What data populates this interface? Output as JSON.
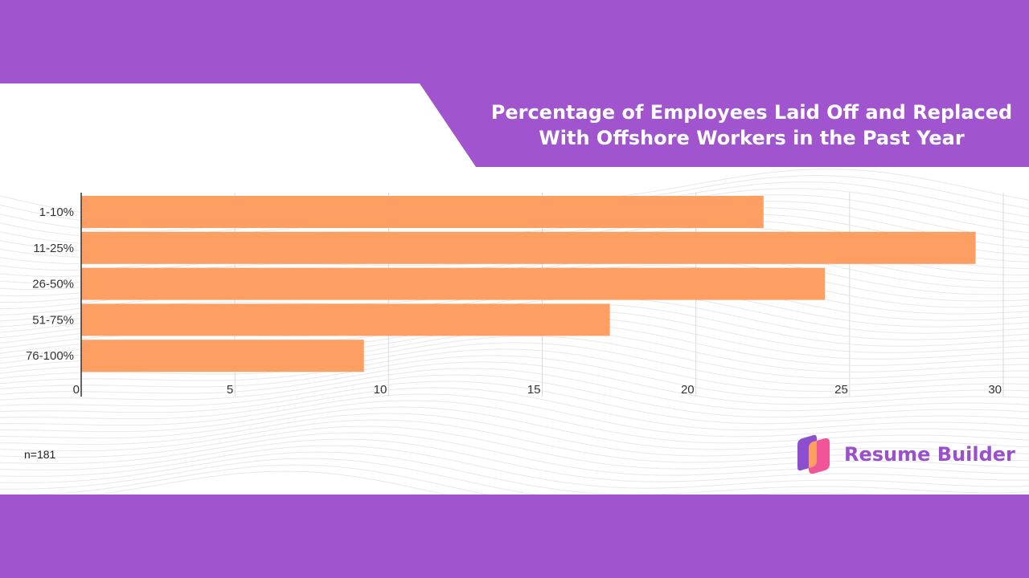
{
  "title_lines": [
    "Percentage of Employees Laid Off and Replaced",
    "With Offshore Workers in the Past Year"
  ],
  "note": "n=181",
  "brand": {
    "name": "Resume Builder",
    "logo_icon": "resume-builder-logo-icon"
  },
  "colors": {
    "frame": "#a055cf",
    "bar": "#fd9f62",
    "brand_text": "#9a50cc",
    "logo_purple": "#8d4fd0",
    "logo_pink": "#f0559a",
    "logo_orange": "#fd9f62"
  },
  "chart_data": {
    "type": "bar",
    "orientation": "horizontal",
    "categories": [
      "1-10%",
      "11-25%",
      "26-50%",
      "51-75%",
      "76-100%"
    ],
    "values": [
      22.2,
      29.1,
      24.2,
      17.2,
      9.2
    ],
    "x_ticks": [
      0,
      5,
      10,
      15,
      20,
      25,
      30
    ],
    "xlim": [
      0,
      30.5
    ],
    "grid": true,
    "xlabel": "",
    "ylabel": ""
  }
}
